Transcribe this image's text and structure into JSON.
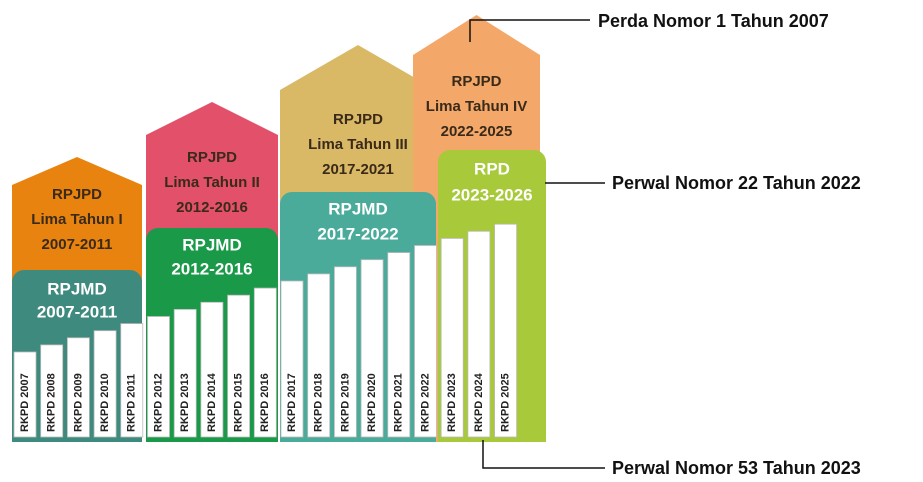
{
  "annotations": [
    "Perda Nomor 1 Tahun 2007",
    "Perwal Nomor 22 Tahun 2022",
    "Perwal Nomor 53 Tahun 2023"
  ],
  "plans": [
    {
      "roof": [
        "RPJPD",
        "Lima Tahun I",
        "2007-2011"
      ],
      "box": [
        "RPJMD",
        "2007-2011"
      ]
    },
    {
      "roof": [
        "RPJPD",
        "Lima Tahun II",
        "2012-2016"
      ],
      "box": [
        "RPJMD",
        "2012-2016"
      ]
    },
    {
      "roof": [
        "RPJPD",
        "Lima Tahun III",
        "2017-2021"
      ],
      "box": [
        "RPJMD",
        "2017-2022"
      ]
    },
    {
      "roof": [
        "RPJPD",
        "Lima Tahun IV",
        "2022-2025"
      ],
      "box": [
        "RPD",
        "2023-2026"
      ]
    }
  ],
  "rkpd": [
    "RKPD 2007",
    "RKPD 2008",
    "RKPD 2009",
    "RKPD 2010",
    "RKPD 2011",
    "RKPD 2012",
    "RKPD 2013",
    "RKPD 2014",
    "RKPD 2015",
    "RKPD 2016",
    "RKPD 2017",
    "RKPD 2018",
    "RKPD 2019",
    "RKPD 2020",
    "RKPD 2021",
    "RKPD 2022",
    "RKPD 2023",
    "RKPD 2024",
    "RKPD 2025"
  ]
}
